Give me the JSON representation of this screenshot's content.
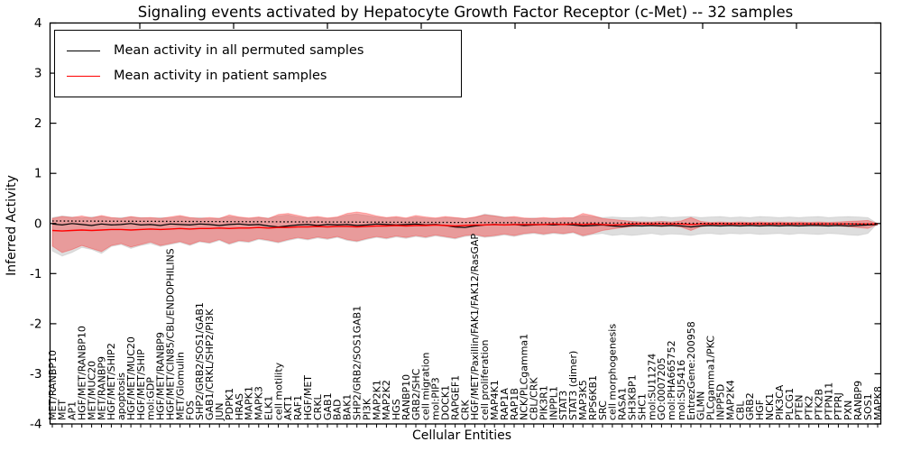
{
  "title": "Signaling events activated by Hepatocyte Growth Factor Receptor (c-Met) -- 32 samples",
  "legend": {
    "items": [
      {
        "label": "Mean activity in all permuted samples",
        "color": "#000000"
      },
      {
        "label": "Mean activity in patient samples",
        "color": "#ff0000"
      }
    ]
  },
  "axes": {
    "xlabel": "Cellular Entities",
    "ylabel": "Inferred Activity",
    "ylim": [
      -4,
      4
    ],
    "yticks": [
      4,
      3,
      2,
      1,
      0,
      -1,
      -2,
      -3,
      -4
    ]
  },
  "chart_data": {
    "type": "line",
    "title": "Signaling events activated by Hepatocyte Growth Factor Receptor (c-Met) -- 32 samples",
    "xlabel": "Cellular Entities",
    "ylabel": "Inferred Activity",
    "ylim": [
      -4,
      4
    ],
    "grid": false,
    "legend_position": "upper left",
    "categories": [
      "MET/RANBP10",
      "MET",
      "AP1",
      "HGF/MET/RANBP10",
      "MET/MUC20",
      "MET/RANBP9",
      "HGF/MET/SHIP2",
      "apoptosis",
      "HGF/MET/MUC20",
      "HGF/MET/SHIP",
      "mol:GDP",
      "HGF/MET/RANBP9",
      "HGF/MET/CIN85/CBL/ENDOPHILINS",
      "MET/Glomulin",
      "FOS",
      "SHP2/GRB2/SOS1/GAB1",
      "GAB1/CRKL/SHP2/PI3K",
      "JUN",
      "PDPK1",
      "HRAS",
      "MAPK1",
      "MAPK3",
      "ELK1",
      "cell motility",
      "AKT1",
      "RAF1",
      "HGF/MET",
      "CRKL",
      "GAB1",
      "BAD",
      "BAK1",
      "SHP2/GRB2/SOS1GAB1",
      "PI3K",
      "MAP2K1",
      "MAP2K2",
      "HGS",
      "RANBP10",
      "GRB2/SHC",
      "cell migration",
      "mol:PIP3",
      "DOCK1",
      "RAPGEF1",
      "CRK",
      "HGF/MET/Paxillin/FAK1/FAK12/RasGAP",
      "cell proliferation",
      "MAP4K1",
      "RAP1A",
      "RAP1B",
      "NCK/PLCgamma1",
      "CBL/CRK",
      "PIK3R1",
      "INPPL1",
      "STAT3",
      "STAT3 (dimer)",
      "MAP3K5",
      "RPS6KB1",
      "SRC",
      "cell morphogenesis",
      "RASA1",
      "SH3KBP1",
      "SHC1",
      "mol:SU11274",
      "GO:0007205",
      "mol:PHA665752",
      "mol:SU5416",
      "EntrezGene:200958",
      "GLMN",
      "PLCgamma1/PKC",
      "INPP5D",
      "MAP2K4",
      "CBL",
      "GRB2",
      "HGF",
      "NCK1",
      "PIK3CA",
      "PLCG1",
      "PTEN",
      "PTK2",
      "PTK2B",
      "PTPN11",
      "PTPRJ",
      "PXN",
      "RANBP9",
      "SOS1",
      "MAPK8"
    ],
    "series": [
      {
        "name": "Permuted samples spread (band)",
        "type": "band",
        "color": "rgba(0,0,0,0.13)",
        "edge": "rgba(0,0,0,0.08)",
        "upper": [
          0.12,
          0.15,
          0.13,
          0.12,
          0.13,
          0.14,
          0.11,
          0.12,
          0.13,
          0.12,
          0.11,
          0.12,
          0.11,
          0.14,
          0.11,
          0.12,
          0.1,
          0.11,
          0.14,
          0.12,
          0.1,
          0.12,
          0.11,
          0.15,
          0.17,
          0.13,
          0.11,
          0.12,
          0.1,
          0.12,
          0.17,
          0.19,
          0.16,
          0.13,
          0.11,
          0.12,
          0.1,
          0.13,
          0.11,
          0.1,
          0.12,
          0.11,
          0.1,
          0.12,
          0.19,
          0.16,
          0.13,
          0.12,
          0.1,
          0.11,
          0.1,
          0.11,
          0.1,
          0.12,
          0.16,
          0.14,
          0.12,
          0.13,
          0.12,
          0.12,
          0.13,
          0.12,
          0.14,
          0.12,
          0.13,
          0.14,
          0.12,
          0.13,
          0.14,
          0.12,
          0.13,
          0.12,
          0.14,
          0.13,
          0.12,
          0.13,
          0.12,
          0.13,
          0.14,
          0.12,
          0.13,
          0.14,
          0.13,
          0.12,
          0.0
        ],
        "lower": [
          -0.55,
          -0.65,
          -0.58,
          -0.48,
          -0.52,
          -0.6,
          -0.46,
          -0.42,
          -0.5,
          -0.44,
          -0.4,
          -0.46,
          -0.42,
          -0.38,
          -0.44,
          -0.37,
          -0.4,
          -0.34,
          -0.42,
          -0.36,
          -0.38,
          -0.32,
          -0.35,
          -0.39,
          -0.34,
          -0.3,
          -0.33,
          -0.29,
          -0.32,
          -0.28,
          -0.34,
          -0.37,
          -0.32,
          -0.28,
          -0.31,
          -0.27,
          -0.3,
          -0.26,
          -0.29,
          -0.25,
          -0.28,
          -0.31,
          -0.26,
          -0.24,
          -0.28,
          -0.26,
          -0.23,
          -0.26,
          -0.22,
          -0.2,
          -0.23,
          -0.2,
          -0.22,
          -0.19,
          -0.26,
          -0.22,
          -0.2,
          -0.24,
          -0.22,
          -0.24,
          -0.22,
          -0.2,
          -0.23,
          -0.21,
          -0.22,
          -0.24,
          -0.21,
          -0.2,
          -0.22,
          -0.2,
          -0.21,
          -0.2,
          -0.22,
          -0.21,
          -0.2,
          -0.22,
          -0.2,
          -0.21,
          -0.22,
          -0.2,
          -0.21,
          -0.23,
          -0.24,
          -0.2,
          0.0
        ]
      },
      {
        "name": "Patient samples spread (band)",
        "type": "band",
        "color": "rgba(255,0,0,0.30)",
        "edge": "rgba(255,0,0,0.25)",
        "upper": [
          0.1,
          0.14,
          0.12,
          0.15,
          0.11,
          0.16,
          0.12,
          0.1,
          0.14,
          0.11,
          0.12,
          0.1,
          0.13,
          0.16,
          0.12,
          0.1,
          0.12,
          0.1,
          0.17,
          0.13,
          0.11,
          0.13,
          0.1,
          0.18,
          0.2,
          0.16,
          0.12,
          0.14,
          0.11,
          0.13,
          0.2,
          0.23,
          0.2,
          0.15,
          0.12,
          0.14,
          0.11,
          0.16,
          0.13,
          0.11,
          0.14,
          0.12,
          0.1,
          0.13,
          0.17,
          0.15,
          0.12,
          0.14,
          0.11,
          0.1,
          0.12,
          0.1,
          0.12,
          0.11,
          0.2,
          0.16,
          0.1,
          0.08,
          0.06,
          0.04,
          0.03,
          0.03,
          0.04,
          0.03,
          0.05,
          0.12,
          0.04,
          0.02,
          0.03,
          0.02,
          0.03,
          0.02,
          0.03,
          0.02,
          0.03,
          0.02,
          0.03,
          0.02,
          0.03,
          0.02,
          0.03,
          0.04,
          0.05,
          0.06,
          0.0
        ],
        "lower": [
          -0.45,
          -0.58,
          -0.52,
          -0.44,
          -0.5,
          -0.56,
          -0.44,
          -0.4,
          -0.47,
          -0.42,
          -0.37,
          -0.44,
          -0.4,
          -0.36,
          -0.42,
          -0.35,
          -0.38,
          -0.32,
          -0.4,
          -0.34,
          -0.36,
          -0.3,
          -0.33,
          -0.37,
          -0.32,
          -0.28,
          -0.31,
          -0.27,
          -0.3,
          -0.26,
          -0.32,
          -0.35,
          -0.3,
          -0.26,
          -0.29,
          -0.25,
          -0.28,
          -0.24,
          -0.27,
          -0.23,
          -0.26,
          -0.29,
          -0.24,
          -0.22,
          -0.26,
          -0.24,
          -0.21,
          -0.24,
          -0.2,
          -0.18,
          -0.21,
          -0.18,
          -0.2,
          -0.17,
          -0.24,
          -0.2,
          -0.14,
          -0.11,
          -0.08,
          -0.06,
          -0.05,
          -0.05,
          -0.06,
          -0.05,
          -0.07,
          -0.14,
          -0.06,
          -0.04,
          -0.05,
          -0.04,
          -0.05,
          -0.04,
          -0.05,
          -0.04,
          -0.05,
          -0.04,
          -0.05,
          -0.04,
          -0.05,
          -0.04,
          -0.05,
          -0.06,
          -0.08,
          -0.1,
          -0.02
        ]
      },
      {
        "name": "Mean activity in all permuted samples",
        "type": "line",
        "color": "#000000",
        "width": 1.2,
        "values": [
          -0.01,
          -0.03,
          0.0,
          -0.02,
          -0.04,
          -0.01,
          -0.03,
          -0.02,
          0.0,
          -0.03,
          -0.02,
          -0.04,
          -0.01,
          -0.02,
          -0.03,
          -0.01,
          -0.02,
          -0.04,
          -0.02,
          -0.01,
          -0.03,
          -0.02,
          -0.05,
          -0.07,
          -0.05,
          -0.03,
          -0.02,
          -0.04,
          -0.02,
          -0.03,
          -0.02,
          -0.04,
          -0.03,
          -0.01,
          -0.02,
          -0.03,
          -0.02,
          -0.01,
          -0.03,
          -0.02,
          -0.04,
          -0.07,
          -0.08,
          -0.05,
          -0.03,
          -0.02,
          -0.03,
          -0.02,
          -0.04,
          -0.03,
          -0.02,
          -0.03,
          -0.02,
          -0.03,
          -0.05,
          -0.04,
          -0.03,
          -0.05,
          -0.06,
          -0.04,
          -0.05,
          -0.04,
          -0.05,
          -0.04,
          -0.05,
          -0.07,
          -0.05,
          -0.04,
          -0.05,
          -0.04,
          -0.05,
          -0.04,
          -0.05,
          -0.04,
          -0.05,
          -0.04,
          -0.05,
          -0.04,
          -0.04,
          -0.05,
          -0.04,
          -0.05,
          -0.04,
          -0.03,
          -0.02
        ]
      },
      {
        "name": "Mean activity in patient samples",
        "type": "line",
        "color": "#ff0000",
        "width": 1.4,
        "values": [
          -0.14,
          -0.15,
          -0.14,
          -0.13,
          -0.14,
          -0.13,
          -0.12,
          -0.12,
          -0.13,
          -0.12,
          -0.11,
          -0.12,
          -0.11,
          -0.1,
          -0.11,
          -0.1,
          -0.1,
          -0.09,
          -0.1,
          -0.09,
          -0.09,
          -0.08,
          -0.09,
          -0.08,
          -0.08,
          -0.07,
          -0.07,
          -0.06,
          -0.07,
          -0.06,
          -0.06,
          -0.07,
          -0.06,
          -0.05,
          -0.05,
          -0.04,
          -0.05,
          -0.04,
          -0.04,
          -0.03,
          -0.04,
          -0.05,
          -0.04,
          -0.03,
          -0.03,
          -0.02,
          -0.03,
          -0.02,
          -0.02,
          -0.02,
          -0.02,
          -0.01,
          -0.02,
          -0.01,
          -0.02,
          -0.01,
          -0.02,
          -0.03,
          -0.02,
          -0.01,
          -0.01,
          -0.01,
          -0.01,
          -0.01,
          -0.01,
          -0.02,
          -0.01,
          -0.01,
          -0.01,
          -0.01,
          -0.01,
          -0.01,
          -0.01,
          -0.01,
          -0.01,
          -0.01,
          -0.01,
          -0.01,
          -0.01,
          -0.01,
          -0.01,
          -0.01,
          -0.01,
          -0.01,
          -0.01
        ]
      },
      {
        "name": "Zero reference (dotted)",
        "type": "line",
        "style": "dotted",
        "color": "#000000",
        "width": 1.3,
        "x": [
          0,
          84
        ],
        "values": [
          0.05,
          -0.01
        ]
      }
    ]
  }
}
